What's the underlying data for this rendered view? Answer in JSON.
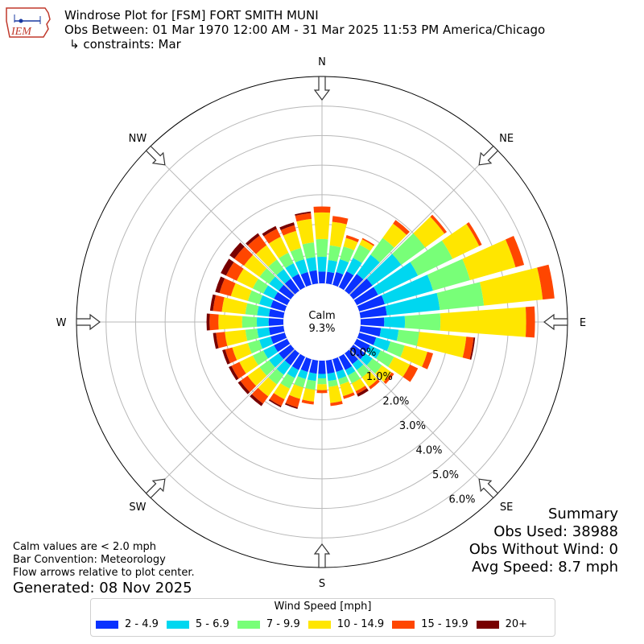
{
  "header": {
    "line1": "Windrose Plot for [FSM] FORT SMITH MUNI",
    "line2": "Obs Between: 01 Mar 1970 12:00 AM - 31 Mar 2025 11:53 PM America/Chicago",
    "line3": "↳ constraints: Mar"
  },
  "logo": {
    "text": "IEM",
    "icon": "iowa-state-map-logo"
  },
  "footer": {
    "calm_note": "Calm values are < 2.0 mph",
    "bar_convention": "Bar Convention: Meteorology",
    "flow_note": "Flow arrows relative to plot center.",
    "generated": "Generated: 08 Nov 2025"
  },
  "summary": {
    "title": "Summary",
    "obs_used": "Obs Used: 38988",
    "obs_without_wind": "Obs Without Wind: 0",
    "avg_speed": "Avg Speed: 8.7 mph"
  },
  "legend": {
    "title": "Wind Speed [mph]",
    "items": [
      "2 - 4.9",
      "5 - 6.9",
      "7 - 9.9",
      "10 - 14.9",
      "15 - 19.9",
      "20+"
    ]
  },
  "chart_data": {
    "type": "windrose",
    "calm_label": "Calm",
    "calm_value": "9.3%",
    "compass": [
      "N",
      "NE",
      "E",
      "SE",
      "S",
      "SW",
      "W",
      "NW"
    ],
    "radial_ticks": [
      "0.0%",
      "1.0%",
      "2.0%",
      "3.0%",
      "4.0%",
      "5.0%",
      "6.0%"
    ],
    "radial_values": [
      0,
      1,
      2,
      3,
      4,
      5,
      6
    ],
    "rmax": 7,
    "bins": [
      "2 - 4.9",
      "5 - 6.9",
      "7 - 9.9",
      "10 - 14.9",
      "15 - 19.9",
      "20+"
    ],
    "colors": [
      "#0a32ff",
      "#00d7f0",
      "#78ff78",
      "#ffe600",
      "#ff4600",
      "#780000"
    ],
    "directions_deg": [
      0,
      10,
      20,
      30,
      40,
      50,
      60,
      70,
      80,
      90,
      100,
      110,
      120,
      130,
      140,
      150,
      160,
      170,
      180,
      190,
      200,
      210,
      220,
      230,
      240,
      250,
      260,
      270,
      280,
      290,
      300,
      310,
      320,
      330,
      340,
      350
    ],
    "cumulative_percent": [
      [
        0.4,
        0.9,
        1.5,
        2.4,
        2.6,
        2.6
      ],
      [
        0.4,
        0.8,
        1.3,
        2.1,
        2.3,
        2.3
      ],
      [
        0.45,
        0.9,
        1.35,
        1.65,
        1.75,
        1.75
      ],
      [
        0.6,
        1.1,
        1.6,
        1.8,
        1.85,
        1.85
      ],
      [
        0.7,
        1.5,
        2.2,
        2.8,
        2.95,
        2.95
      ],
      [
        0.8,
        2.0,
        3.0,
        3.8,
        3.9,
        3.9
      ],
      [
        0.8,
        2.3,
        3.6,
        4.6,
        4.7,
        4.7
      ],
      [
        0.9,
        2.6,
        3.9,
        5.5,
        5.8,
        5.8
      ],
      [
        0.9,
        2.7,
        4.2,
        6.2,
        6.6,
        6.6
      ],
      [
        0.8,
        1.5,
        2.7,
        5.6,
        5.9,
        5.9
      ],
      [
        0.7,
        1.3,
        2.0,
        3.6,
        3.85,
        3.9
      ],
      [
        0.6,
        1.1,
        1.6,
        2.4,
        2.6,
        2.6
      ],
      [
        0.5,
        0.9,
        1.4,
        2.0,
        2.3,
        2.3
      ],
      [
        0.5,
        0.8,
        1.2,
        1.6,
        1.7,
        1.7
      ],
      [
        0.45,
        0.7,
        1.0,
        1.4,
        1.5,
        1.5
      ],
      [
        0.5,
        0.7,
        1.0,
        1.3,
        1.4,
        1.5
      ],
      [
        0.45,
        0.7,
        0.9,
        1.3,
        1.4,
        1.4
      ],
      [
        0.45,
        0.7,
        0.9,
        1.45,
        1.55,
        1.55
      ],
      [
        0.45,
        0.6,
        0.8,
        1.0,
        1.1,
        1.1
      ],
      [
        0.45,
        0.7,
        1.0,
        1.4,
        1.5,
        1.5
      ],
      [
        0.45,
        0.7,
        1.0,
        1.4,
        1.7,
        1.75
      ],
      [
        0.5,
        0.8,
        1.2,
        1.6,
        1.85,
        1.9
      ],
      [
        0.5,
        0.9,
        1.3,
        1.8,
        2.1,
        2.2
      ],
      [
        0.5,
        0.9,
        1.3,
        1.8,
        2.1,
        2.2
      ],
      [
        0.5,
        0.9,
        1.3,
        1.8,
        2.1,
        2.2
      ],
      [
        0.5,
        0.9,
        1.3,
        1.85,
        2.1,
        2.2
      ],
      [
        0.5,
        0.9,
        1.3,
        2.0,
        2.3,
        2.4
      ],
      [
        0.5,
        0.9,
        1.4,
        2.2,
        2.5,
        2.6
      ],
      [
        0.5,
        0.9,
        1.3,
        2.1,
        2.4,
        2.5
      ],
      [
        0.5,
        0.9,
        1.3,
        1.9,
        2.3,
        2.45
      ],
      [
        0.5,
        0.9,
        1.3,
        1.9,
        2.3,
        2.5
      ],
      [
        0.5,
        0.9,
        1.3,
        1.95,
        2.35,
        2.55
      ],
      [
        0.5,
        0.9,
        1.3,
        1.9,
        2.3,
        2.4
      ],
      [
        0.5,
        0.9,
        1.3,
        1.9,
        2.2,
        2.3
      ],
      [
        0.45,
        0.9,
        1.3,
        1.9,
        2.1,
        2.2
      ],
      [
        0.45,
        0.9,
        1.4,
        2.2,
        2.4,
        2.45
      ]
    ]
  }
}
